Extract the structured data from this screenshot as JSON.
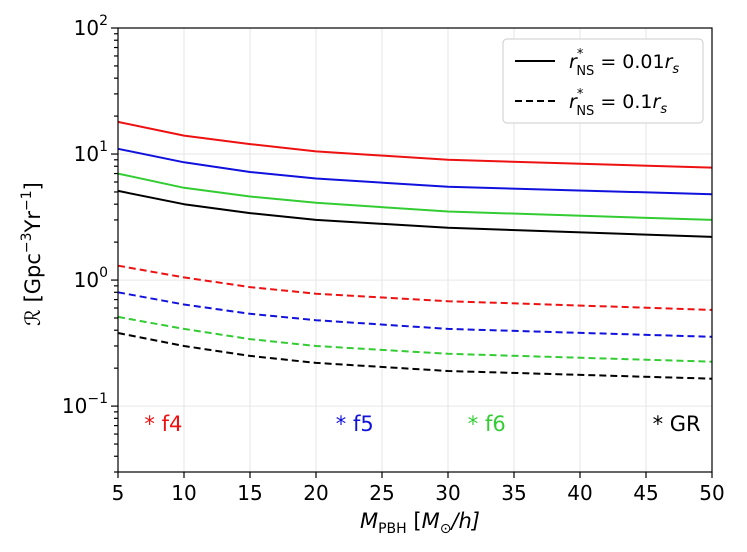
{
  "chart_data": {
    "type": "line",
    "yscale": "log",
    "xlabel": "M_PBH [M_⊙/h]",
    "xlabel_parts": {
      "main": "M",
      "sub": "PBH",
      "bracket_open": " [",
      "unit_main": "M",
      "unit_sub": "⊙",
      "unit_tail": "/h]"
    },
    "ylabel": "ℛ [Gpc^-3 Yr^-1]",
    "ylabel_parts": {
      "symbol": "ℛ",
      "pre": " [Gpc",
      "sup1": "−3",
      "mid": "Yr",
      "sup2": "−1",
      "post": "]"
    },
    "xlim": [
      5,
      50
    ],
    "ylim": [
      0.03,
      100
    ],
    "xticks": [
      5,
      10,
      15,
      20,
      25,
      30,
      35,
      40,
      45,
      50
    ],
    "xtick_labels": [
      "5",
      "10",
      "15",
      "20",
      "25",
      "30",
      "35",
      "40",
      "45",
      "50"
    ],
    "yticks": [
      {
        "value": 0.1,
        "base": "10",
        "exp": "−1"
      },
      {
        "value": 1,
        "base": "10",
        "exp": "0"
      },
      {
        "value": 10,
        "base": "10",
        "exp": "1"
      },
      {
        "value": 100,
        "base": "10",
        "exp": "2"
      }
    ],
    "grid": true,
    "legend_location": "top-right",
    "legend": [
      {
        "style": "solid",
        "var": "r",
        "sup": "*",
        "sub": "NS",
        "rhs": " = 0.01",
        "rhs_var": "r",
        "rhs_sub": "s"
      },
      {
        "style": "dashed",
        "var": "r",
        "sup": "*",
        "sub": "NS",
        "rhs": " = 0.1",
        "rhs_var": "r",
        "rhs_sub": "s"
      }
    ],
    "x": [
      5,
      10,
      15,
      20,
      30,
      50
    ],
    "series": [
      {
        "name": "f4 (r*NS = 0.01 rs)",
        "color": "#ee1111",
        "style": "solid",
        "values": [
          18.0,
          14.0,
          12.0,
          10.5,
          9.0,
          7.8
        ]
      },
      {
        "name": "f5 (r*NS = 0.01 rs)",
        "color": "#1111dd",
        "style": "solid",
        "values": [
          11.0,
          8.6,
          7.2,
          6.4,
          5.5,
          4.8
        ]
      },
      {
        "name": "f6 (r*NS = 0.01 rs)",
        "color": "#33cc33",
        "style": "solid",
        "values": [
          7.0,
          5.4,
          4.6,
          4.1,
          3.5,
          3.0
        ]
      },
      {
        "name": "GR (r*NS = 0.01 rs)",
        "color": "#000000",
        "style": "solid",
        "values": [
          5.1,
          4.0,
          3.4,
          3.0,
          2.6,
          2.2
        ]
      },
      {
        "name": "f4 (r*NS = 0.1 rs)",
        "color": "#ee1111",
        "style": "dashed",
        "values": [
          1.3,
          1.05,
          0.88,
          0.78,
          0.68,
          0.58
        ]
      },
      {
        "name": "f5 (r*NS = 0.1 rs)",
        "color": "#1111dd",
        "style": "dashed",
        "values": [
          0.8,
          0.64,
          0.54,
          0.48,
          0.41,
          0.355
        ]
      },
      {
        "name": "f6 (r*NS = 0.1 rs)",
        "color": "#33cc33",
        "style": "dashed",
        "values": [
          0.51,
          0.41,
          0.34,
          0.3,
          0.26,
          0.225
        ]
      },
      {
        "name": "GR (r*NS = 0.1 rs)",
        "color": "#000000",
        "style": "dashed",
        "values": [
          0.38,
          0.3,
          0.25,
          0.22,
          0.19,
          0.165
        ]
      }
    ],
    "annotations": [
      {
        "text": "* f4",
        "color": "#ee1111",
        "x": 7.0,
        "y": 0.072
      },
      {
        "text": "* f5",
        "color": "#1111dd",
        "x": 21.5,
        "y": 0.072
      },
      {
        "text": "* f6",
        "color": "#33cc33",
        "x": 31.5,
        "y": 0.072
      },
      {
        "text": "* GR",
        "color": "#000000",
        "x": 45.5,
        "y": 0.072
      }
    ]
  }
}
